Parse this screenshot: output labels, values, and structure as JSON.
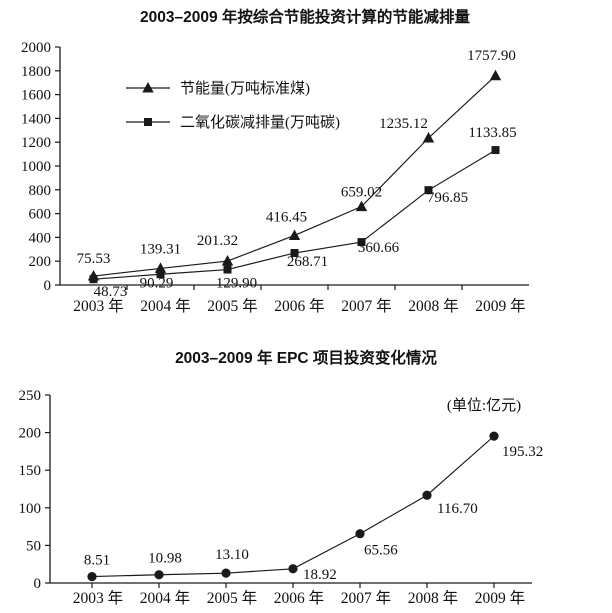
{
  "page": {
    "background": "#ffffff",
    "ink_color": "#1a1a1a"
  },
  "chart_data": [
    {
      "type": "line",
      "title": "2003–2009 年按综合节能投资计算的节能减排量",
      "categories": [
        "2003 年",
        "2004 年",
        "2005 年",
        "2006 年",
        "2007 年",
        "2008 年",
        "2009 年"
      ],
      "ylim": [
        0,
        2000
      ],
      "ytick_step": 200,
      "grid": false,
      "legend_position": "inside-upper-left",
      "series": [
        {
          "name": "节能量(万吨标准煤)",
          "marker": "triangle",
          "values": [
            75.53,
            139.31,
            201.32,
            416.45,
            659.02,
            1235.12,
            1757.9
          ],
          "labels": [
            "75.53",
            "139.31",
            "201.32",
            "416.45",
            "659.02",
            "1235.12",
            "1757.90"
          ]
        },
        {
          "name": "二氧化碳减排量(万吨碳)",
          "marker": "square",
          "values": [
            48.73,
            90.29,
            129.9,
            268.71,
            360.66,
            796.85,
            1133.85
          ],
          "labels": [
            "48.73",
            "90.29",
            "129.90",
            "268.71",
            "360.66",
            "796.85",
            "1133.85"
          ]
        }
      ]
    },
    {
      "type": "line",
      "title": "2003–2009 年 EPC 项目投资变化情况",
      "unit_note": "(单位:亿元)",
      "categories": [
        "2003 年",
        "2004 年",
        "2005 年",
        "2006 年",
        "2007 年",
        "2008 年",
        "2009 年"
      ],
      "ylim": [
        0,
        250
      ],
      "ytick_step": 50,
      "grid": false,
      "legend_position": "none",
      "series": [
        {
          "marker": "circle",
          "values": [
            8.51,
            10.98,
            13.1,
            18.92,
            65.56,
            116.7,
            195.32
          ],
          "labels": [
            "8.51",
            "10.98",
            "13.10",
            "18.92",
            "65.56",
            "116.70",
            "195.32"
          ]
        }
      ]
    }
  ]
}
